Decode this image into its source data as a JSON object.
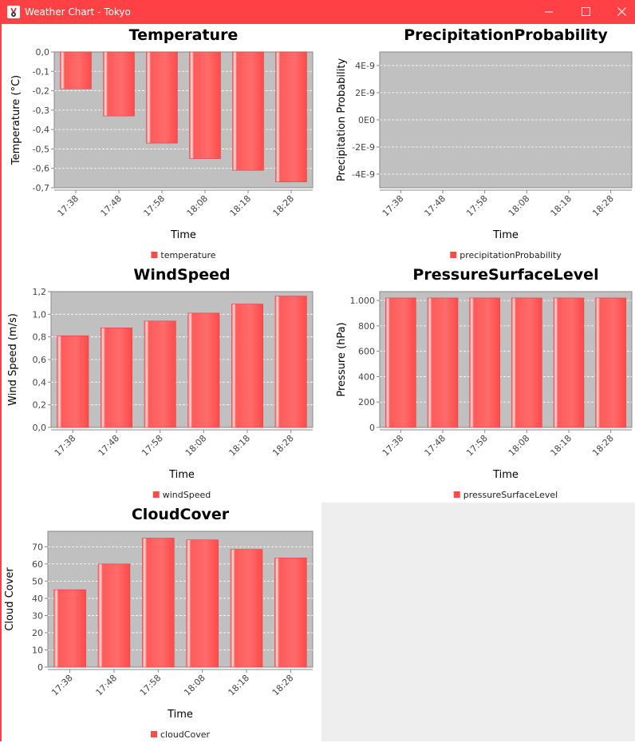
{
  "window": {
    "title": "Weather Chart - Tokyo",
    "icon": "java-duke-icon",
    "controls": [
      "minimize-icon",
      "maximize-icon",
      "close-icon"
    ]
  },
  "colors": {
    "titlebar": "#ff4044",
    "plot_background": "#c0c0c0",
    "bar": "#ff5555",
    "bar_highlight": "#ffcccc",
    "panel_background": "#ffffff",
    "empty_area": "#eeeeee"
  },
  "chart_data": [
    {
      "type": "bar",
      "title": "Temperature",
      "xlabel": "Time",
      "ylabel": "Temperature (°C)",
      "categories": [
        "17:38",
        "17:48",
        "17:58",
        "18:08",
        "18:18",
        "18:28"
      ],
      "series": [
        {
          "name": "temperature",
          "values": [
            -0.19,
            -0.33,
            -0.47,
            -0.55,
            -0.61,
            -0.67
          ]
        }
      ],
      "ylim": [
        -0.7,
        0.0
      ],
      "yticks": [
        0.0,
        -0.1,
        -0.2,
        -0.3,
        -0.4,
        -0.5,
        -0.6,
        -0.7
      ],
      "ytick_labels": [
        "0,0",
        "-0,1",
        "-0,2",
        "-0,3",
        "-0,4",
        "-0,5",
        "-0,6",
        "-0,7"
      ],
      "grid": true,
      "legend": "bottom"
    },
    {
      "type": "bar",
      "title": "PrecipitationProbability",
      "xlabel": "Time",
      "ylabel": "Precipitation Probability",
      "categories": [
        "17:38",
        "17:48",
        "17:58",
        "18:08",
        "18:18",
        "18:28"
      ],
      "series": [
        {
          "name": "precipitationProbability",
          "values": [
            0,
            0,
            0,
            0,
            0,
            0
          ]
        }
      ],
      "ylim": [
        -5e-09,
        5e-09
      ],
      "yticks": [
        4e-09,
        2e-09,
        0,
        -2e-09,
        -4e-09
      ],
      "ytick_labels": [
        "4E-9",
        "2E-9",
        "0E0",
        "-2E-9",
        "-4E-9"
      ],
      "grid": true,
      "legend": "bottom"
    },
    {
      "type": "bar",
      "title": "WindSpeed",
      "xlabel": "Time",
      "ylabel": "Wind Speed (m/s)",
      "categories": [
        "17:38",
        "17:48",
        "17:58",
        "18:08",
        "18:18",
        "18:28"
      ],
      "series": [
        {
          "name": "windSpeed",
          "values": [
            0.81,
            0.88,
            0.94,
            1.01,
            1.09,
            1.16
          ]
        }
      ],
      "ylim": [
        0.0,
        1.2
      ],
      "yticks": [
        0.0,
        0.2,
        0.4,
        0.6,
        0.8,
        1.0,
        1.2
      ],
      "ytick_labels": [
        "0,0",
        "0,2",
        "0,4",
        "0,6",
        "0,8",
        "1,0",
        "1,2"
      ],
      "grid": true,
      "legend": "bottom"
    },
    {
      "type": "bar",
      "title": "PressureSurfaceLevel",
      "xlabel": "Time",
      "ylabel": "Pressure (hPa)",
      "categories": [
        "17:38",
        "17:48",
        "17:58",
        "18:08",
        "18:18",
        "18:28"
      ],
      "series": [
        {
          "name": "pressureSurfaceLevel",
          "values": [
            1020,
            1020,
            1020,
            1020,
            1020,
            1020
          ]
        }
      ],
      "ylim": [
        0,
        1070
      ],
      "yticks": [
        0,
        200,
        400,
        600,
        800,
        1000
      ],
      "ytick_labels": [
        "0",
        "200",
        "400",
        "600",
        "800",
        "1.000"
      ],
      "grid": true,
      "legend": "bottom"
    },
    {
      "type": "bar",
      "title": "CloudCover",
      "xlabel": "Time",
      "ylabel": "Cloud Cover",
      "categories": [
        "17:38",
        "17:48",
        "17:58",
        "18:08",
        "18:18",
        "18:28"
      ],
      "series": [
        {
          "name": "cloudCover",
          "values": [
            45,
            60,
            75,
            74,
            68.5,
            63.5
          ]
        }
      ],
      "ylim": [
        0,
        79
      ],
      "yticks": [
        0,
        10,
        20,
        30,
        40,
        50,
        60,
        70
      ],
      "ytick_labels": [
        "0",
        "10",
        "20",
        "30",
        "40",
        "50",
        "60",
        "70"
      ],
      "grid": true,
      "legend": "bottom"
    }
  ]
}
